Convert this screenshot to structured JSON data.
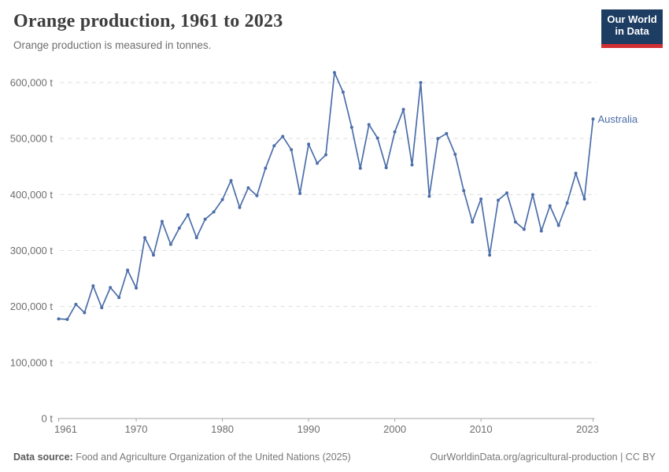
{
  "header": {
    "title": "Orange production, 1961 to 2023",
    "subtitle": "Orange production is measured in tonnes."
  },
  "logo": {
    "line1": "Our World",
    "line2": "in Data",
    "bg_color": "#1d3d63",
    "bar_color": "#d12f33"
  },
  "chart_data": {
    "type": "line",
    "title": "Orange production, 1961 to 2023",
    "subtitle": "Orange production is measured in tonnes.",
    "xlabel": "",
    "ylabel": "",
    "unit": "t",
    "xlim": [
      1961,
      2023
    ],
    "ylim": [
      0,
      600000
    ],
    "grid": "horizontal-dashed",
    "legend_position": "end-of-line-label",
    "x_ticks": [
      1961,
      1970,
      1980,
      1990,
      2000,
      2010,
      2023
    ],
    "x_tick_labels": [
      "1961",
      "1970",
      "1980",
      "1990",
      "2000",
      "2010",
      "2023"
    ],
    "y_ticks": [
      0,
      100000,
      200000,
      300000,
      400000,
      500000,
      600000
    ],
    "y_tick_labels": [
      "0 t",
      "100,000 t",
      "200,000 t",
      "300,000 t",
      "400,000 t",
      "500,000 t",
      "600,000 t"
    ],
    "x": [
      1961,
      1962,
      1963,
      1964,
      1965,
      1966,
      1967,
      1968,
      1969,
      1970,
      1971,
      1972,
      1973,
      1974,
      1975,
      1976,
      1977,
      1978,
      1979,
      1980,
      1981,
      1982,
      1983,
      1984,
      1985,
      1986,
      1987,
      1988,
      1989,
      1990,
      1991,
      1992,
      1993,
      1994,
      1995,
      1996,
      1997,
      1998,
      1999,
      2000,
      2001,
      2002,
      2003,
      2004,
      2005,
      2006,
      2007,
      2008,
      2009,
      2010,
      2011,
      2012,
      2013,
      2014,
      2015,
      2016,
      2017,
      2018,
      2019,
      2020,
      2021,
      2022,
      2023
    ],
    "series": [
      {
        "name": "Australia",
        "color": "#4c6ea9",
        "values": [
          178000,
          177000,
          204000,
          189000,
          237000,
          198000,
          234000,
          216000,
          265000,
          233000,
          323000,
          292000,
          352000,
          311000,
          340000,
          364000,
          323000,
          356000,
          369000,
          391000,
          425000,
          377000,
          412000,
          398000,
          447000,
          487000,
          504000,
          480000,
          402000,
          490000,
          456000,
          471000,
          618000,
          583000,
          520000,
          447000,
          525000,
          501000,
          448000,
          512000,
          552000,
          453000,
          600000,
          397000,
          500000,
          509000,
          472000,
          407000,
          351000,
          392000,
          292000,
          390000,
          403000,
          351000,
          338000,
          400000,
          335000,
          380000,
          345000,
          385000,
          438000,
          392000,
          535000
        ]
      }
    ],
    "colors": {
      "gridline": "#dcdcdc",
      "axis": "#a5a5a5",
      "tick_label": "#6e6e6e",
      "series_label": "#4c6ea9"
    }
  },
  "footer": {
    "source_label": "Data source:",
    "source_text": " Food and Agriculture Organization of the United Nations (2025)",
    "right_text": "OurWorldinData.org/agricultural-production | CC BY"
  }
}
